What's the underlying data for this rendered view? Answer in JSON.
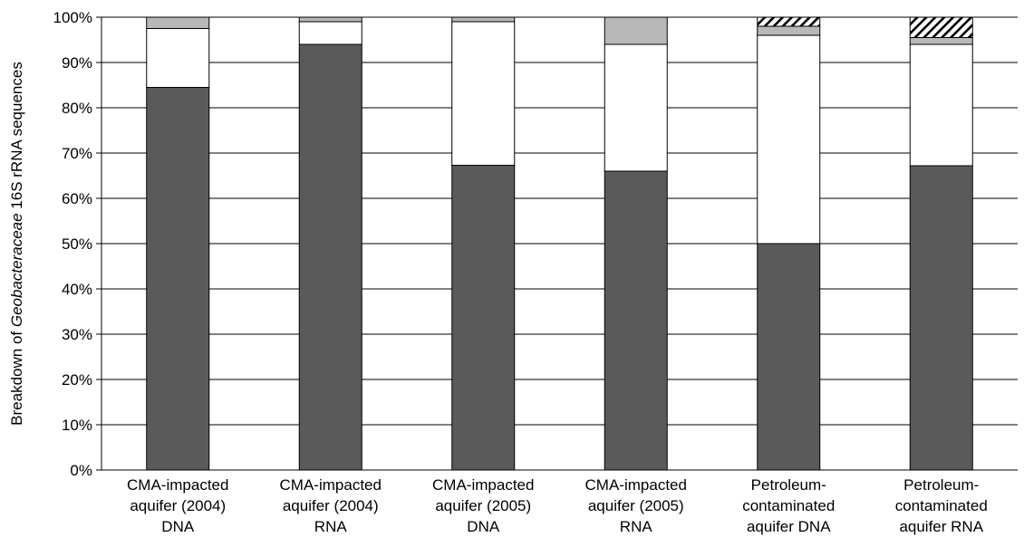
{
  "chart_data": {
    "type": "bar",
    "stacked": true,
    "ylabel_parts": [
      "Breakdown of ",
      "Geobacteraceae",
      " 16S rRNA sequences"
    ],
    "ylim": [
      0,
      100
    ],
    "yticks": [
      "0%",
      "10%",
      "20%",
      "30%",
      "40%",
      "50%",
      "60%",
      "70%",
      "80%",
      "90%",
      "100%"
    ],
    "grid": true,
    "categories": [
      [
        "CMA-impacted",
        "aquifer (2004)",
        "DNA"
      ],
      [
        "CMA-impacted",
        "aquifer (2004)",
        "RNA"
      ],
      [
        "CMA-impacted",
        "aquifer (2005)",
        "DNA"
      ],
      [
        "CMA-impacted",
        "aquifer (2005)",
        "RNA"
      ],
      [
        "Petroleum-",
        "contaminated",
        "aquifer DNA"
      ],
      [
        "Petroleum-",
        "contaminated",
        "aquifer RNA"
      ]
    ],
    "series": [
      {
        "fill": "#5a5a5a",
        "values": [
          84.5,
          94,
          67.3,
          66,
          50,
          67.2
        ]
      },
      {
        "fill": "#ffffff",
        "values": [
          13,
          5,
          31.7,
          28,
          46,
          26.8
        ]
      },
      {
        "fill": "#b8b8b8",
        "values": [
          2.5,
          1,
          1,
          6,
          2,
          1.5
        ]
      },
      {
        "fill": "hatch",
        "values": [
          0,
          0,
          0,
          0,
          2,
          4.5
        ]
      }
    ]
  }
}
